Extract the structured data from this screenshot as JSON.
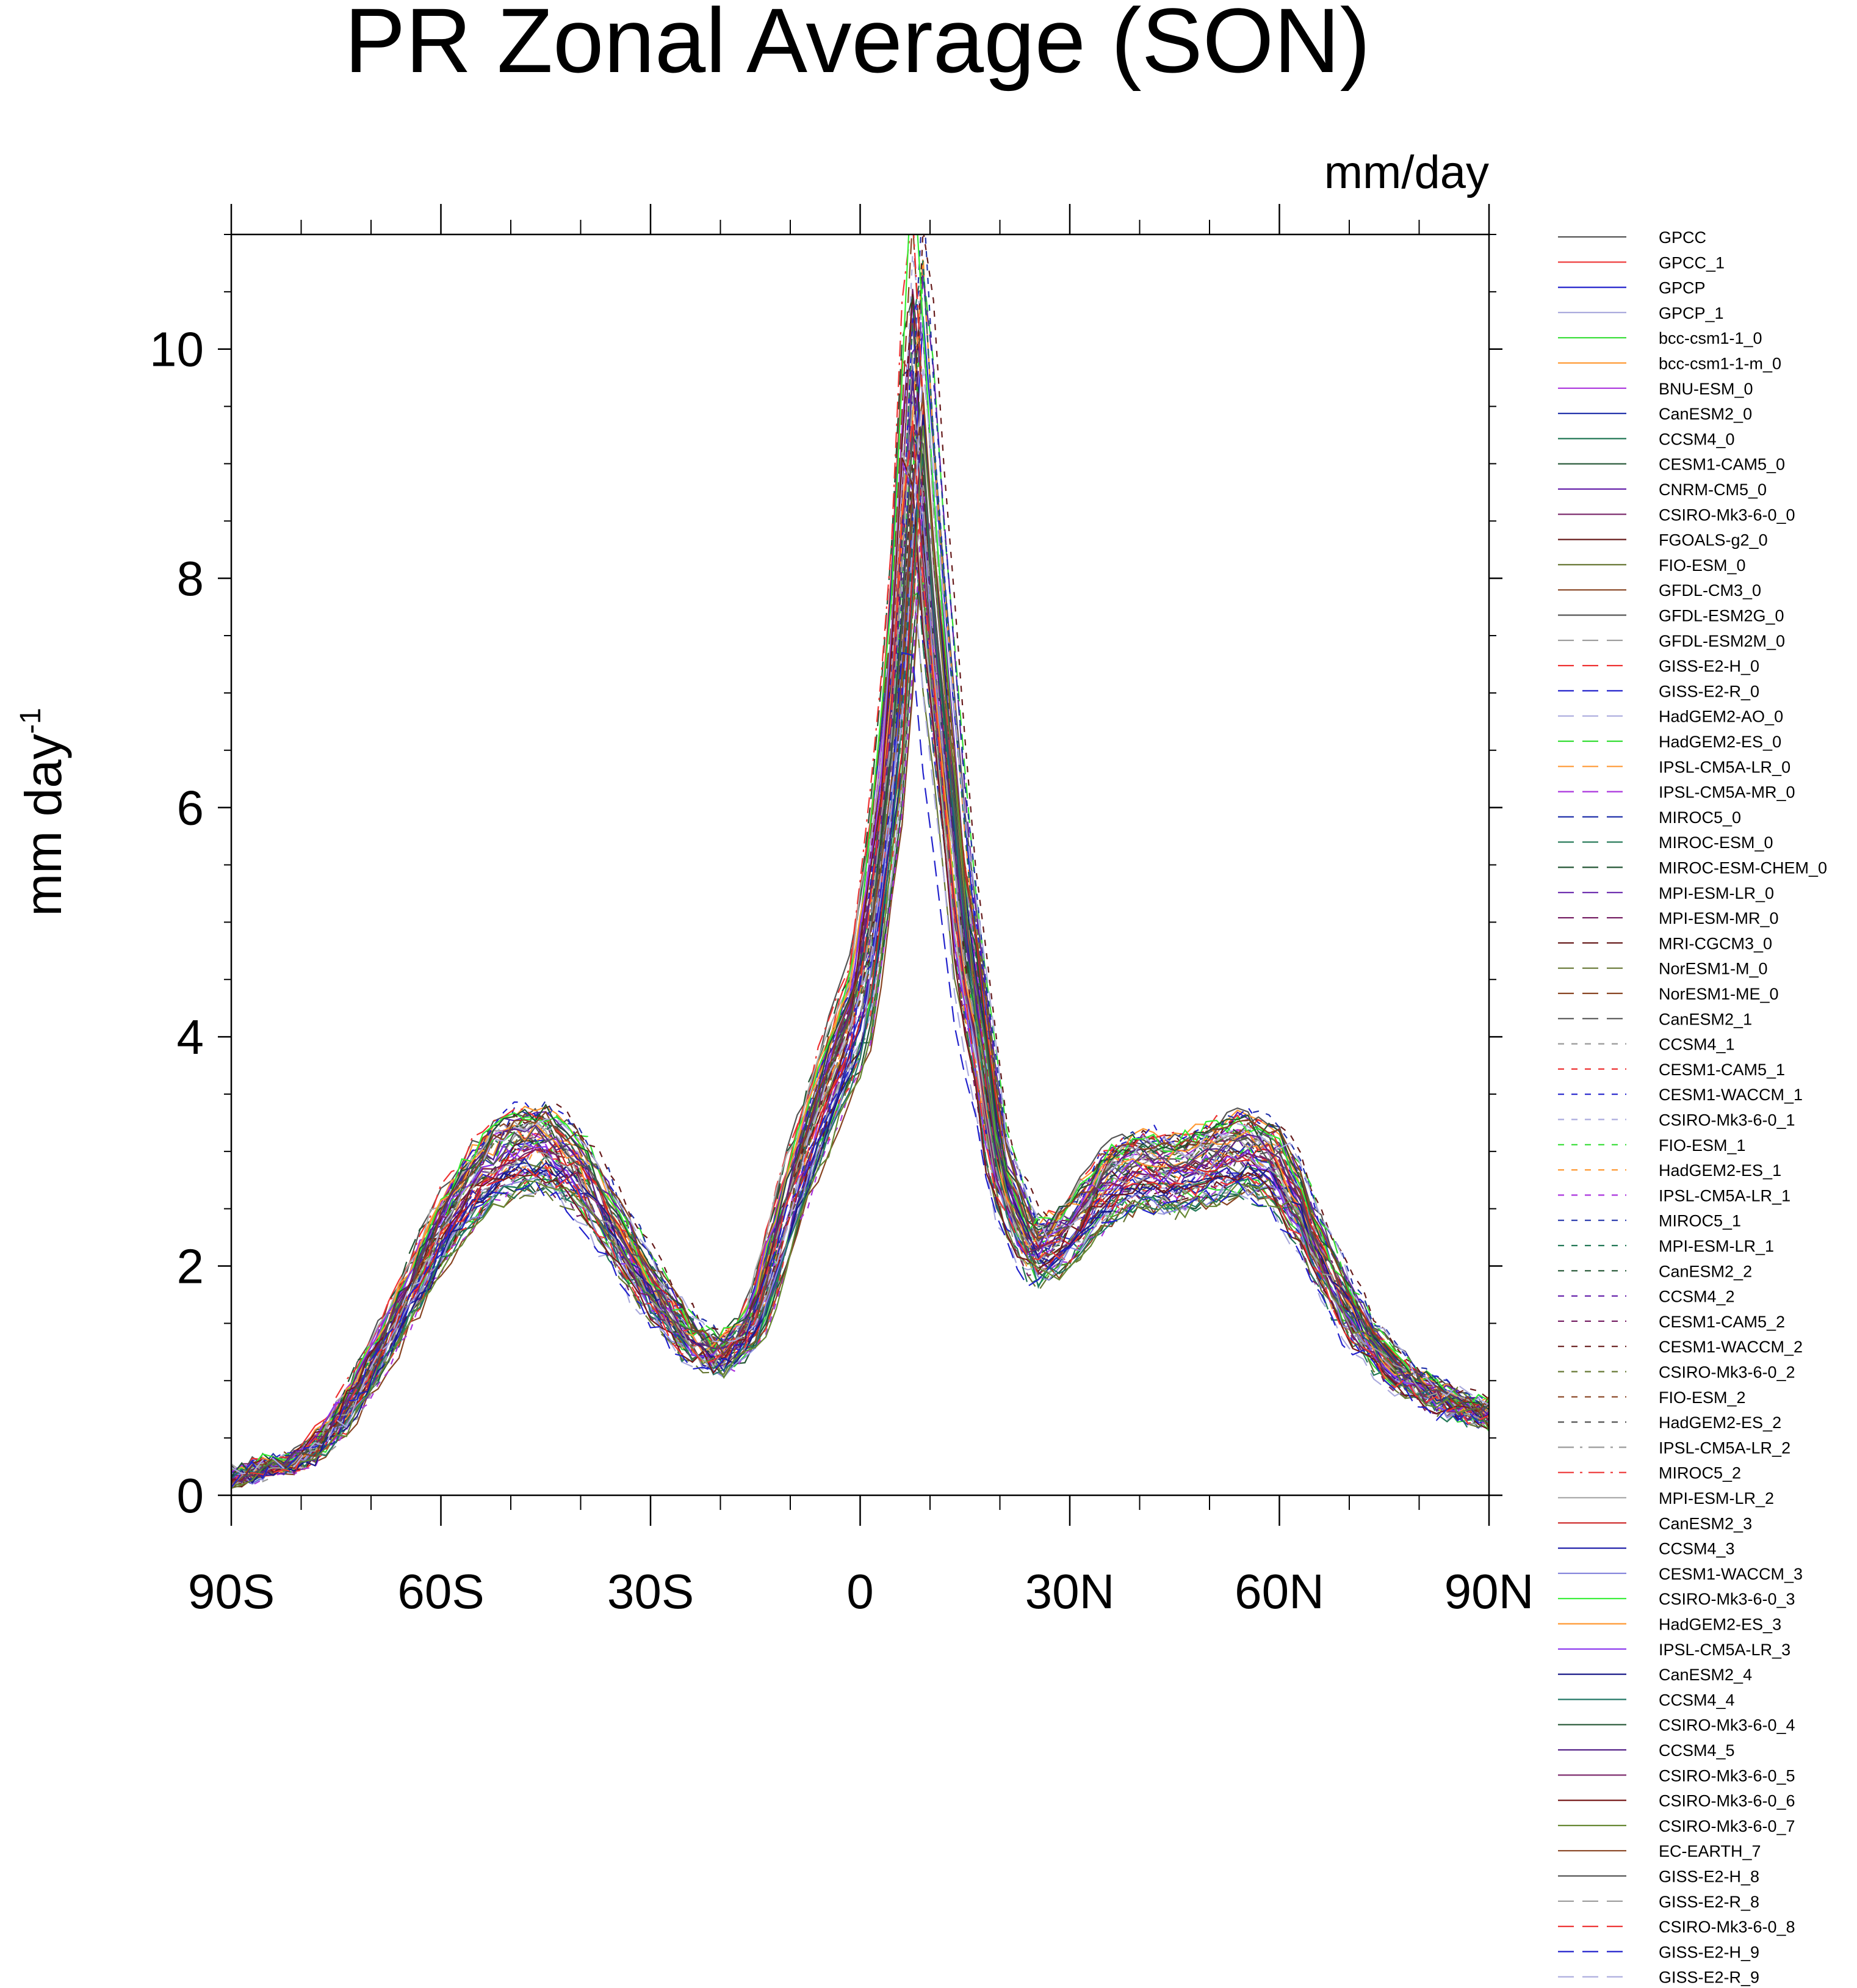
{
  "chart_data": {
    "type": "line",
    "title": "PR Zonal Average (SON)",
    "units_label": "mm/day",
    "ylabel": "mm day",
    "ylabel_exponent": "-1",
    "xlabel": "",
    "xlim": [
      -90,
      90
    ],
    "ylim": [
      0,
      11
    ],
    "xticks": [
      {
        "value": -90,
        "label": "90S"
      },
      {
        "value": -60,
        "label": "60S"
      },
      {
        "value": -30,
        "label": "30S"
      },
      {
        "value": 0,
        "label": "0"
      },
      {
        "value": 30,
        "label": "30N"
      },
      {
        "value": 60,
        "label": "60N"
      },
      {
        "value": 90,
        "label": "90N"
      }
    ],
    "yticks": [
      {
        "value": 0,
        "label": "0"
      },
      {
        "value": 2,
        "label": "2"
      },
      {
        "value": 4,
        "label": "4"
      },
      {
        "value": 6,
        "label": "6"
      },
      {
        "value": 8,
        "label": "8"
      },
      {
        "value": 10,
        "label": "10"
      }
    ],
    "x": [
      -90,
      -85,
      -80,
      -75,
      -70,
      -65,
      -60,
      -55,
      -50,
      -45,
      -40,
      -35,
      -30,
      -25,
      -20,
      -15,
      -10,
      -5,
      0,
      5,
      8,
      10,
      15,
      20,
      25,
      30,
      35,
      40,
      45,
      50,
      55,
      60,
      65,
      70,
      75,
      80,
      85,
      90
    ],
    "reference_profile": [
      0.15,
      0.25,
      0.3,
      0.6,
      1.1,
      1.7,
      2.3,
      2.75,
      3.0,
      3.05,
      2.8,
      2.3,
      1.8,
      1.4,
      1.2,
      1.5,
      2.6,
      3.5,
      4.3,
      7.0,
      10.5,
      8.5,
      5.0,
      2.8,
      2.1,
      2.3,
      2.7,
      2.85,
      2.8,
      2.9,
      3.0,
      2.85,
      2.2,
      1.6,
      1.2,
      0.95,
      0.8,
      0.7
    ],
    "legend_position": "right",
    "series": [
      {
        "name": "GPCC",
        "color": "#555555",
        "dash": "solid"
      },
      {
        "name": "GPCC_1",
        "color": "#ee3333",
        "dash": "solid"
      },
      {
        "name": "GPCP",
        "color": "#2222cc",
        "dash": "solid"
      },
      {
        "name": "GPCP_1",
        "color": "#aaaadd",
        "dash": "solid"
      },
      {
        "name": "bcc-csm1-1_0",
        "color": "#33dd33",
        "dash": "solid"
      },
      {
        "name": "bcc-csm1-1-m_0",
        "color": "#ff9933",
        "dash": "solid"
      },
      {
        "name": "BNU-ESM_0",
        "color": "#aa33dd",
        "dash": "solid"
      },
      {
        "name": "CanESM2_0",
        "color": "#2233aa",
        "dash": "solid"
      },
      {
        "name": "CCSM4_0",
        "color": "#227755",
        "dash": "solid"
      },
      {
        "name": "CESM1-CAM5_0",
        "color": "#225533",
        "dash": "solid"
      },
      {
        "name": "CNRM-CM5_0",
        "color": "#6622aa",
        "dash": "solid"
      },
      {
        "name": "CSIRO-Mk3-6-0_0",
        "color": "#772266",
        "dash": "solid"
      },
      {
        "name": "FGOALS-g2_0",
        "color": "#661a1a",
        "dash": "solid"
      },
      {
        "name": "FIO-ESM_0",
        "color": "#667733",
        "dash": "solid"
      },
      {
        "name": "GFDL-CM3_0",
        "color": "#884422",
        "dash": "solid"
      },
      {
        "name": "GFDL-ESM2G_0",
        "color": "#555555",
        "dash": "solid"
      },
      {
        "name": "GFDL-ESM2M_0",
        "color": "#999999",
        "dash": "long"
      },
      {
        "name": "GISS-E2-H_0",
        "color": "#ee3333",
        "dash": "long"
      },
      {
        "name": "GISS-E2-R_0",
        "color": "#2222cc",
        "dash": "long"
      },
      {
        "name": "HadGEM2-AO_0",
        "color": "#aaaadd",
        "dash": "long"
      },
      {
        "name": "HadGEM2-ES_0",
        "color": "#33dd33",
        "dash": "long"
      },
      {
        "name": "IPSL-CM5A-LR_0",
        "color": "#ff9933",
        "dash": "long"
      },
      {
        "name": "IPSL-CM5A-MR_0",
        "color": "#aa33dd",
        "dash": "long"
      },
      {
        "name": "MIROC5_0",
        "color": "#2233aa",
        "dash": "long"
      },
      {
        "name": "MIROC-ESM_0",
        "color": "#227755",
        "dash": "long"
      },
      {
        "name": "MIROC-ESM-CHEM_0",
        "color": "#225533",
        "dash": "long"
      },
      {
        "name": "MPI-ESM-LR_0",
        "color": "#6622aa",
        "dash": "long"
      },
      {
        "name": "MPI-ESM-MR_0",
        "color": "#772266",
        "dash": "long"
      },
      {
        "name": "MRI-CGCM3_0",
        "color": "#661a1a",
        "dash": "long"
      },
      {
        "name": "NorESM1-M_0",
        "color": "#667733",
        "dash": "long"
      },
      {
        "name": "NorESM1-ME_0",
        "color": "#884422",
        "dash": "long"
      },
      {
        "name": "CanESM2_1",
        "color": "#555555",
        "dash": "long"
      },
      {
        "name": "CCSM4_1",
        "color": "#999999",
        "dash": "short"
      },
      {
        "name": "CESM1-CAM5_1",
        "color": "#ee3333",
        "dash": "short"
      },
      {
        "name": "CESM1-WACCM_1",
        "color": "#2222cc",
        "dash": "short"
      },
      {
        "name": "CSIRO-Mk3-6-0_1",
        "color": "#aaaadd",
        "dash": "short"
      },
      {
        "name": "FIO-ESM_1",
        "color": "#33dd33",
        "dash": "short"
      },
      {
        "name": "HadGEM2-ES_1",
        "color": "#ff9933",
        "dash": "short"
      },
      {
        "name": "IPSL-CM5A-LR_1",
        "color": "#aa33dd",
        "dash": "short"
      },
      {
        "name": "MIROC5_1",
        "color": "#2233aa",
        "dash": "short"
      },
      {
        "name": "MPI-ESM-LR_1",
        "color": "#227755",
        "dash": "short"
      },
      {
        "name": "CanESM2_2",
        "color": "#225533",
        "dash": "short"
      },
      {
        "name": "CCSM4_2",
        "color": "#6622aa",
        "dash": "short"
      },
      {
        "name": "CESM1-CAM5_2",
        "color": "#772266",
        "dash": "short"
      },
      {
        "name": "CESM1-WACCM_2",
        "color": "#661a1a",
        "dash": "short"
      },
      {
        "name": "CSIRO-Mk3-6-0_2",
        "color": "#667733",
        "dash": "short"
      },
      {
        "name": "FIO-ESM_2",
        "color": "#884422",
        "dash": "short"
      },
      {
        "name": "HadGEM2-ES_2",
        "color": "#555555",
        "dash": "short"
      },
      {
        "name": "IPSL-CM5A-LR_2",
        "color": "#999999",
        "dash": "dashdot"
      },
      {
        "name": "MIROC5_2",
        "color": "#ee3333",
        "dash": "dashdot"
      },
      {
        "name": "MPI-ESM-LR_2",
        "color": "#aaaaaa",
        "dash": "solid"
      },
      {
        "name": "CanESM2_3",
        "color": "#cc2222",
        "dash": "solid"
      },
      {
        "name": "CCSM4_3",
        "color": "#2222aa",
        "dash": "solid"
      },
      {
        "name": "CESM1-WACCM_3",
        "color": "#8888dd",
        "dash": "solid"
      },
      {
        "name": "CSIRO-Mk3-6-0_3",
        "color": "#33ee33",
        "dash": "solid"
      },
      {
        "name": "HadGEM2-ES_3",
        "color": "#ff9933",
        "dash": "solid"
      },
      {
        "name": "IPSL-CM5A-LR_3",
        "color": "#8833ee",
        "dash": "solid"
      },
      {
        "name": "CanESM2_4",
        "color": "#1a1a88",
        "dash": "solid"
      },
      {
        "name": "CCSM4_4",
        "color": "#227766",
        "dash": "solid"
      },
      {
        "name": "CSIRO-Mk3-6-0_4",
        "color": "#225533",
        "dash": "solid"
      },
      {
        "name": "CCSM4_5",
        "color": "#552288",
        "dash": "solid"
      },
      {
        "name": "CSIRO-Mk3-6-0_5",
        "color": "#772266",
        "dash": "solid"
      },
      {
        "name": "CSIRO-Mk3-6-0_6",
        "color": "#771a1a",
        "dash": "solid"
      },
      {
        "name": "CSIRO-Mk3-6-0_7",
        "color": "#668833",
        "dash": "solid"
      },
      {
        "name": "EC-EARTH_7",
        "color": "#884422",
        "dash": "solid"
      },
      {
        "name": "GISS-E2-H_8",
        "color": "#555555",
        "dash": "solid"
      },
      {
        "name": "GISS-E2-R_8",
        "color": "#999999",
        "dash": "long"
      },
      {
        "name": "CSIRO-Mk3-6-0_8",
        "color": "#ee3333",
        "dash": "long"
      },
      {
        "name": "GISS-E2-H_9",
        "color": "#2222cc",
        "dash": "long"
      },
      {
        "name": "GISS-E2-R_9",
        "color": "#aaaadd",
        "dash": "long"
      }
    ]
  }
}
